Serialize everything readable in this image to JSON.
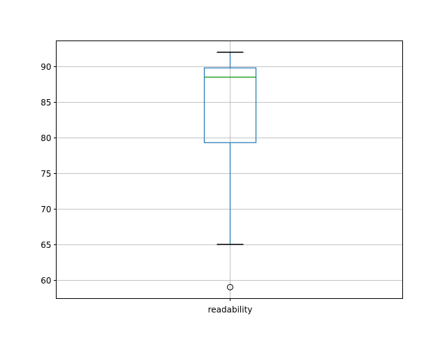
{
  "chart_data": {
    "type": "box",
    "categories": [
      "readability"
    ],
    "boxes": [
      {
        "label": "readability",
        "whisker_low": 65.0,
        "q1": 79.3,
        "median": 88.5,
        "q3": 89.8,
        "whisker_high": 92.0,
        "outliers": [
          59.0
        ]
      }
    ],
    "ylim": [
      57.4,
      93.6
    ],
    "yticks": [
      60,
      65,
      70,
      75,
      80,
      85,
      90
    ],
    "ytick_labels": [
      "60",
      "65",
      "70",
      "75",
      "80",
      "85",
      "90"
    ],
    "grid": true,
    "title": "",
    "xlabel": "",
    "ylabel": "",
    "colors": {
      "box": "#1f77b4",
      "median": "#2ca02c",
      "caps": "#000000",
      "grid": "#b0b0b0"
    }
  }
}
